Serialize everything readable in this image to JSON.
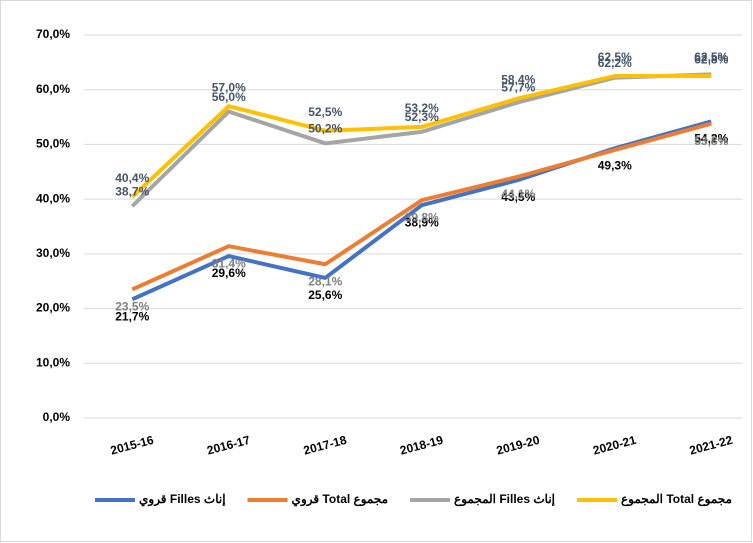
{
  "chart_data": {
    "type": "line",
    "categories": [
      "2015-16",
      "2016-17",
      "2017-18",
      "2018-19",
      "2019-20",
      "2020-21",
      "2021-22"
    ],
    "series": [
      {
        "name": "قروي Filles إناث",
        "color": "#4472c4",
        "label_color": "#000000",
        "values": [
          21.7,
          29.6,
          25.6,
          38.9,
          43.5,
          49.3,
          54.2
        ],
        "value_labels": [
          "21,7%",
          "29,6%",
          "25,6%",
          "38,9%",
          "43,5%",
          "49,3%",
          "54,2%"
        ]
      },
      {
        "name": "قروي Total مجموع",
        "color": "#ed7d31",
        "label_color": "#7f7f7f",
        "values": [
          23.5,
          31.4,
          28.1,
          39.8,
          44.1,
          49.0,
          53.8
        ],
        "value_labels": [
          "23,5%",
          "31,4%",
          "28,1%",
          "39,8%",
          "44,1%",
          null,
          "53,8%"
        ]
      },
      {
        "name": "المجموع Filles إناث",
        "color": "#a5a5a5",
        "label_color": "#44546a",
        "values": [
          38.7,
          56.0,
          50.2,
          52.3,
          57.7,
          62.2,
          62.8
        ],
        "value_labels": [
          "38,7%",
          "56,0%",
          "50,2%",
          "52,3%",
          "57,7%",
          "62,2%",
          "62,8%"
        ]
      },
      {
        "name": "المجموع Total مجموع",
        "color": "#ffc000",
        "label_color": "#44546a",
        "values": [
          40.4,
          57.0,
          52.5,
          53.2,
          58.4,
          62.5,
          62.5
        ],
        "value_labels": [
          "40,4%",
          "57,0%",
          "52,5%",
          "53,2%",
          "58,4%",
          "62,5%",
          "62,5%"
        ]
      }
    ],
    "ylim": [
      0,
      70
    ],
    "yticks": [
      {
        "value": 0,
        "label": "0,0%"
      },
      {
        "value": 10,
        "label": "10,0%"
      },
      {
        "value": 20,
        "label": "20,0%"
      },
      {
        "value": 30,
        "label": "30,0%"
      },
      {
        "value": 40,
        "label": "40,0%"
      },
      {
        "value": 50,
        "label": "50,0%"
      },
      {
        "value": 60,
        "label": "60,0%"
      },
      {
        "value": 70,
        "label": "70,0%"
      }
    ],
    "grid": true,
    "legend": "bottom"
  }
}
